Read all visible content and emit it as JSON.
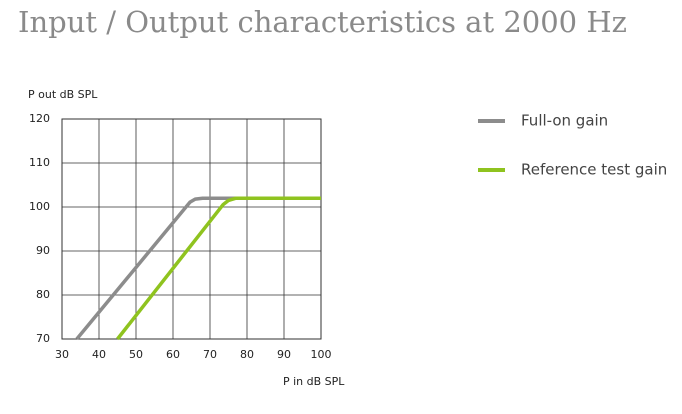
{
  "chart_data": {
    "type": "line",
    "title": "Input / Output characteristics at 2000 Hz",
    "y_label": "P out dB SPL",
    "x_label": "P in dB SPL",
    "xlim": [
      30,
      100
    ],
    "xticks": [
      30,
      40,
      50,
      60,
      70,
      80,
      90,
      100
    ],
    "ylim": [
      70,
      120
    ],
    "yticks": [
      70,
      80,
      90,
      100,
      110,
      120
    ],
    "grid": true,
    "legend_position": "right",
    "series": [
      {
        "name": "Full-on gain",
        "color": "#8c8c8c",
        "x": [
          34,
          64.6,
          66,
          68,
          100
        ],
        "values": [
          70,
          101.1,
          101.8,
          102,
          102
        ]
      },
      {
        "name": "Reference test gain",
        "color": "#8fc31f",
        "x": [
          45,
          73.5,
          75,
          77,
          100
        ],
        "values": [
          70,
          100.5,
          101.5,
          102,
          102
        ]
      }
    ]
  }
}
